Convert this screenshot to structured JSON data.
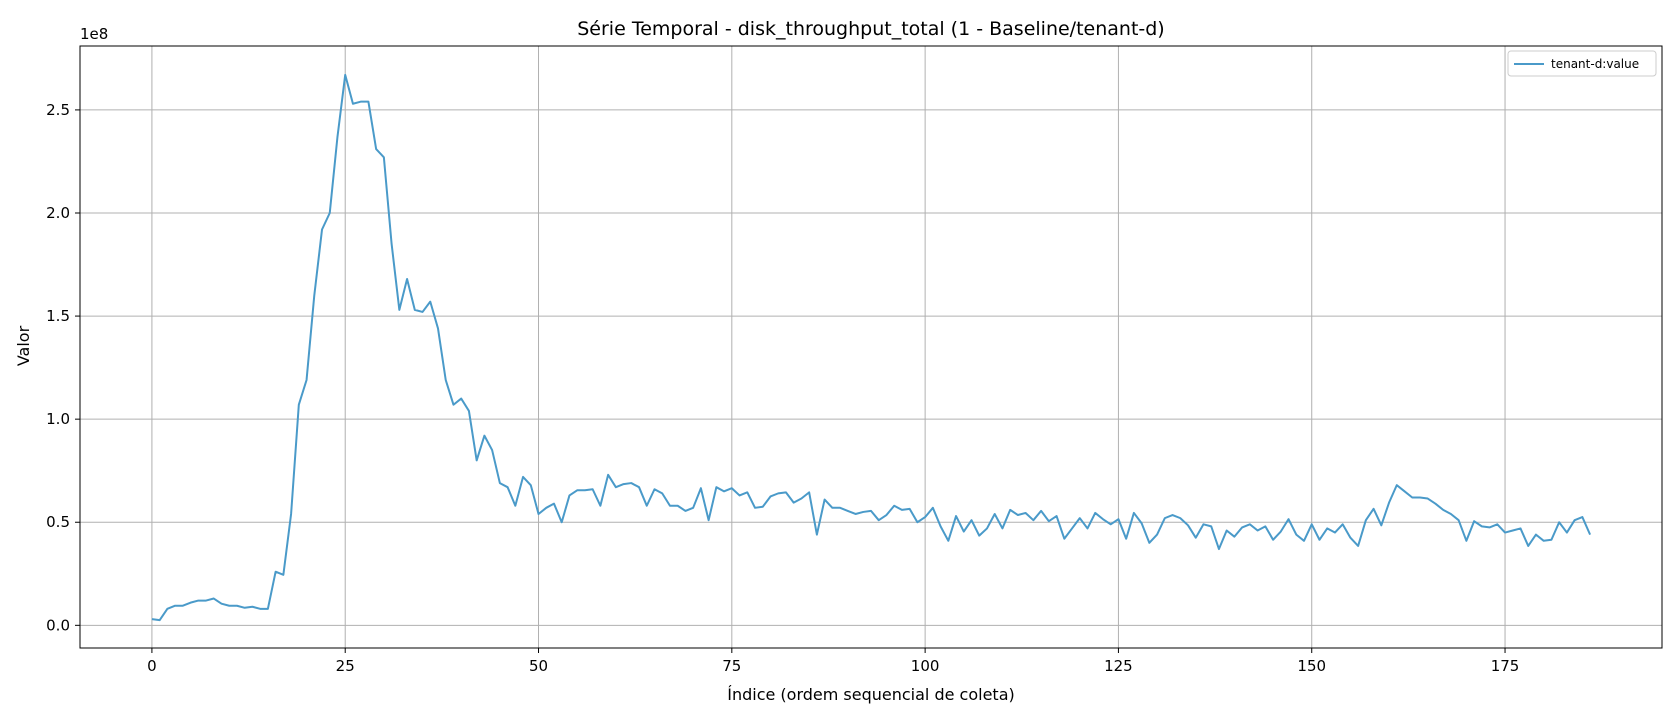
{
  "chart_data": {
    "type": "line",
    "title": "Série Temporal - disk_throughput_total (1 - Baseline/tenant-d)",
    "xlabel": "Índice (ordem sequencial de coleta)",
    "ylabel": "Valor",
    "y_offset_label": "1e8",
    "y_scale": 100000000,
    "xlim": [
      -9.3,
      195.3
    ],
    "ylim": [
      -0.11,
      2.81
    ],
    "x_ticks": [
      0,
      25,
      50,
      75,
      100,
      125,
      150,
      175
    ],
    "x_tick_labels": [
      "0",
      "25",
      "50",
      "75",
      "100",
      "125",
      "150",
      "175"
    ],
    "y_ticks": [
      0.0,
      0.5,
      1.0,
      1.5,
      2.0,
      2.5
    ],
    "y_tick_labels": [
      "0.0",
      "0.5",
      "1.0",
      "1.5",
      "2.0",
      "2.5"
    ],
    "grid": true,
    "legend_position": "top-right",
    "colors": {
      "line": "#4a9ac9",
      "grid": "#b0b0b0",
      "axis": "#000000"
    },
    "series": [
      {
        "name": "tenant-d:value",
        "x_start": 0,
        "values": [
          0.03,
          0.025,
          0.08,
          0.095,
          0.095,
          0.11,
          0.12,
          0.12,
          0.13,
          0.105,
          0.095,
          0.095,
          0.085,
          0.09,
          0.08,
          0.08,
          0.26,
          0.245,
          0.54,
          1.07,
          1.19,
          1.6,
          1.92,
          2.0,
          2.37,
          2.67,
          2.53,
          2.54,
          2.54,
          2.31,
          2.27,
          1.85,
          1.53,
          1.68,
          1.53,
          1.52,
          1.57,
          1.44,
          1.19,
          1.07,
          1.1,
          1.04,
          0.8,
          0.92,
          0.85,
          0.69,
          0.67,
          0.58,
          0.72,
          0.68,
          0.54,
          0.57,
          0.59,
          0.5,
          0.63,
          0.655,
          0.655,
          0.66,
          0.58,
          0.73,
          0.67,
          0.685,
          0.69,
          0.67,
          0.58,
          0.66,
          0.64,
          0.58,
          0.58,
          0.555,
          0.57,
          0.665,
          0.51,
          0.67,
          0.65,
          0.665,
          0.63,
          0.645,
          0.57,
          0.575,
          0.625,
          0.64,
          0.645,
          0.595,
          0.615,
          0.645,
          0.44,
          0.61,
          0.57,
          0.57,
          0.555,
          0.54,
          0.55,
          0.555,
          0.51,
          0.535,
          0.58,
          0.56,
          0.565,
          0.5,
          0.525,
          0.57,
          0.48,
          0.41,
          0.53,
          0.455,
          0.51,
          0.435,
          0.47,
          0.54,
          0.47,
          0.56,
          0.535,
          0.545,
          0.51,
          0.555,
          0.505,
          0.53,
          0.42,
          0.47,
          0.52,
          0.47,
          0.545,
          0.515,
          0.49,
          0.515,
          0.42,
          0.545,
          0.495,
          0.4,
          0.44,
          0.52,
          0.535,
          0.52,
          0.485,
          0.425,
          0.49,
          0.48,
          0.37,
          0.46,
          0.43,
          0.475,
          0.49,
          0.46,
          0.48,
          0.415,
          0.455,
          0.515,
          0.44,
          0.41,
          0.49,
          0.415,
          0.47,
          0.45,
          0.49,
          0.425,
          0.385,
          0.51,
          0.565,
          0.485,
          0.595,
          0.68,
          0.65,
          0.62,
          0.62,
          0.615,
          0.59,
          0.56,
          0.54,
          0.51,
          0.41,
          0.505,
          0.48,
          0.475,
          0.49,
          0.45,
          0.46,
          0.47,
          0.385,
          0.44,
          0.41,
          0.415,
          0.5,
          0.45,
          0.51,
          0.525,
          0.44
        ]
      }
    ]
  }
}
